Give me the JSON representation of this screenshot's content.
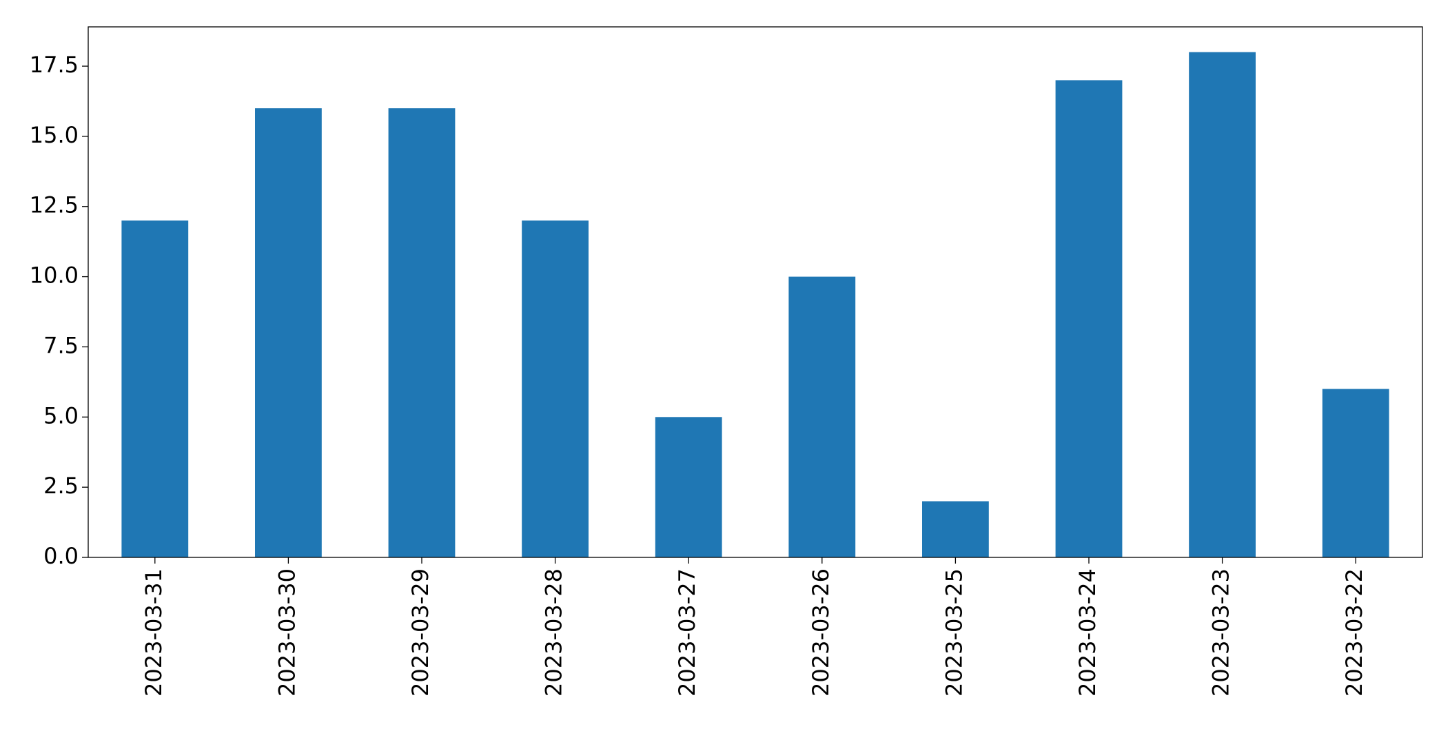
{
  "chart_data": {
    "type": "bar",
    "categories": [
      "2023-03-31",
      "2023-03-30",
      "2023-03-29",
      "2023-03-28",
      "2023-03-27",
      "2023-03-26",
      "2023-03-25",
      "2023-03-24",
      "2023-03-23",
      "2023-03-22"
    ],
    "values": [
      12,
      16,
      16,
      12,
      5,
      10,
      2,
      17,
      18,
      6
    ],
    "color": "#1f77b4",
    "ylim": [
      0,
      18.9
    ],
    "yticks": [
      {
        "value": 0,
        "label": "0.0"
      },
      2.5,
      {
        "value": 5,
        "label": "5.0"
      },
      7.5,
      {
        "value": 10,
        "label": "10.0"
      },
      12.5,
      {
        "value": 15,
        "label": "15.0"
      },
      17.5
    ],
    "grid": false
  }
}
